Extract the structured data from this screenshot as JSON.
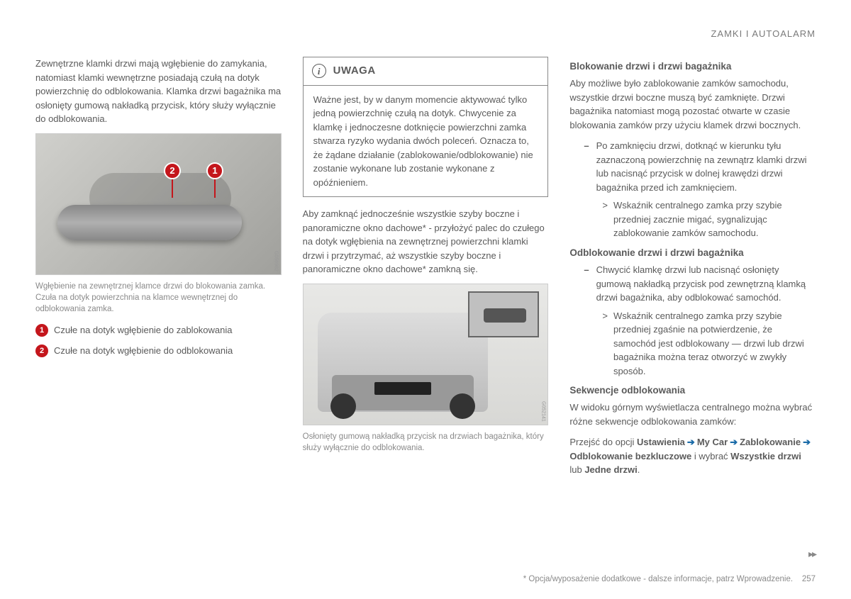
{
  "header": {
    "section": "ZAMKI I AUTOALARM"
  },
  "col1": {
    "intro": "Zewnętrzne klamki drzwi mają wgłębienie do zamykania, natomiast klamki wewnętrzne posiadają czułą na dotyk powierzchnię do odblokowania. Klamka drzwi bagażnika ma osłonięty gumową nakładką przycisk, który służy wyłącznie do odblokowania.",
    "image1": {
      "id": "G056982",
      "pins": {
        "p1": "1",
        "p2": "2"
      },
      "caption": "Wgłębienie na zewnętrznej klamce drzwi do blokowania zamka. Czuła na dotyk powierzchnia na klamce wewnętrznej do odblokowania zamka."
    },
    "legend": {
      "l1": {
        "num": "1",
        "text": "Czułe na dotyk wgłębienie do zablokowania"
      },
      "l2": {
        "num": "2",
        "text": "Czułe na dotyk wgłębienie do odblokowania"
      }
    }
  },
  "col2": {
    "note": {
      "icon": "i",
      "title": "UWAGA",
      "body": "Ważne jest, by w danym momencie aktywować tylko jedną powierzchnię czułą na dotyk. Chwycenie za klamkę i jednoczesne dotknięcie powierzchni zamka stwarza ryzyko wydania dwóch poleceń. Oznacza to, że żądane działanie (zablokowanie/odblokowanie) nie zostanie wykonane lub zostanie wykonane z opóźnieniem."
    },
    "para1": "Aby zamknąć jednocześnie wszystkie szyby boczne i panoramiczne okno dachowe* - przyłożyć palec do czułego na dotyk wgłębienia na zewnętrznej powierzchni klamki drzwi i przytrzymać, aż wszystkie szyby boczne i panoramiczne okno dachowe* zamkną się.",
    "image2": {
      "id": "G052141",
      "caption": "Osłonięty gumową nakładką przycisk na drzwiach bagażnika, który służy wyłącznie do odblokowania."
    }
  },
  "col3": {
    "h1": "Blokowanie drzwi i drzwi bagażnika",
    "p1": "Aby możliwe było zablokowanie zamków samochodu, wszystkie drzwi boczne muszą być zamknięte. Drzwi bagażnika natomiast mogą pozostać otwarte w czasie blokowania zamków przy użyciu klamek drzwi bocznych.",
    "dash1": "Po zamknięciu drzwi, dotknąć w kierunku tyłu zaznaczoną powierzchnię na zewnątrz klamki drzwi lub nacisnąć przycisk w dolnej krawędzi drzwi bagażnika przed ich zamknięciem.",
    "sub1": "Wskaźnik centralnego zamka przy szybie przedniej zacznie migać, sygnalizując zablokowanie zamków samochodu.",
    "h2": "Odblokowanie drzwi i drzwi bagażnika",
    "dash2": "Chwycić klamkę drzwi lub nacisnąć osłonięty gumową nakładką przycisk pod zewnętrzną klamką drzwi bagażnika, aby odblokować samochód.",
    "sub2": "Wskaźnik centralnego zamka przy szybie przedniej zgaśnie na potwierdzenie, że samochód jest odblokowany — drzwi lub drzwi bagażnika można teraz otworzyć w zwykły sposób.",
    "h3": "Sekwencje odblokowania",
    "p3": "W widoku górnym wyświetlacza centralnego można wybrać różne sekwencje odblokowania zamków:",
    "nav_intro": "Przejść do opcji ",
    "nav1": "Ustawienia",
    "nav2": "My Car",
    "nav3": "Zablokowanie",
    "nav4": "Odblokowanie bezkluczowe",
    "nav_mid": " i wybrać ",
    "nav5": "Wszystkie drzwi",
    "nav_or": " lub ",
    "nav6": "Jedne drzwi",
    "nav_end": "."
  },
  "footer": {
    "note": "* Opcja/wyposażenie dodatkowe - dalsze informacje, patrz Wprowadzenie.",
    "page": "257"
  }
}
